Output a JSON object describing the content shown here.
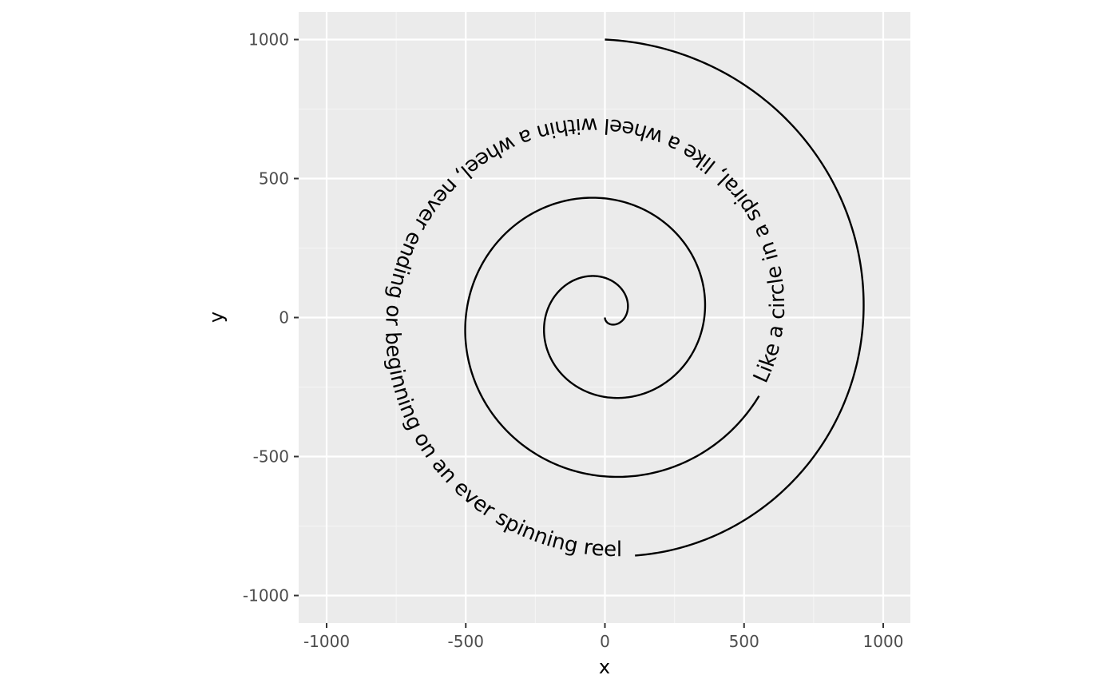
{
  "chart_data": {
    "type": "line",
    "title": "",
    "xlabel": "x",
    "ylabel": "y",
    "xlim": [
      -1095,
      1095
    ],
    "ylim": [
      -1095,
      1095
    ],
    "x_ticks": [
      -1000,
      -500,
      0,
      500,
      1000
    ],
    "y_ticks": [
      -1000,
      -500,
      0,
      500,
      1000
    ],
    "x_tick_labels": [
      "-1000",
      "-500",
      "0",
      "500",
      "1000"
    ],
    "y_tick_labels": [
      "-1000",
      "-500",
      "0",
      "500",
      "1000"
    ],
    "grid": true,
    "legend": "none",
    "aspect_ratio": "equal",
    "series": [
      {
        "kind": "archimedean-spiral",
        "start": [
          0,
          0
        ],
        "end": [
          0,
          -1000
        ],
        "turns": 3.5,
        "angle_start_deg": -90,
        "radius_end": 1000,
        "direction": "counterclockwise"
      }
    ],
    "text_path": {
      "label": "Like a circle in a spiral, like a wheel within a wheel, never ending or beginning on an ever spinning reel",
      "follows": "spiral",
      "color": "#000000"
    },
    "colors": {
      "panel_background": "#ebebeb",
      "grid_major": "#ffffff",
      "grid_minor": "#f5f5f5",
      "line": "#000000",
      "tick_label": "#4d4d4d",
      "tick_mark": "#333333"
    }
  }
}
